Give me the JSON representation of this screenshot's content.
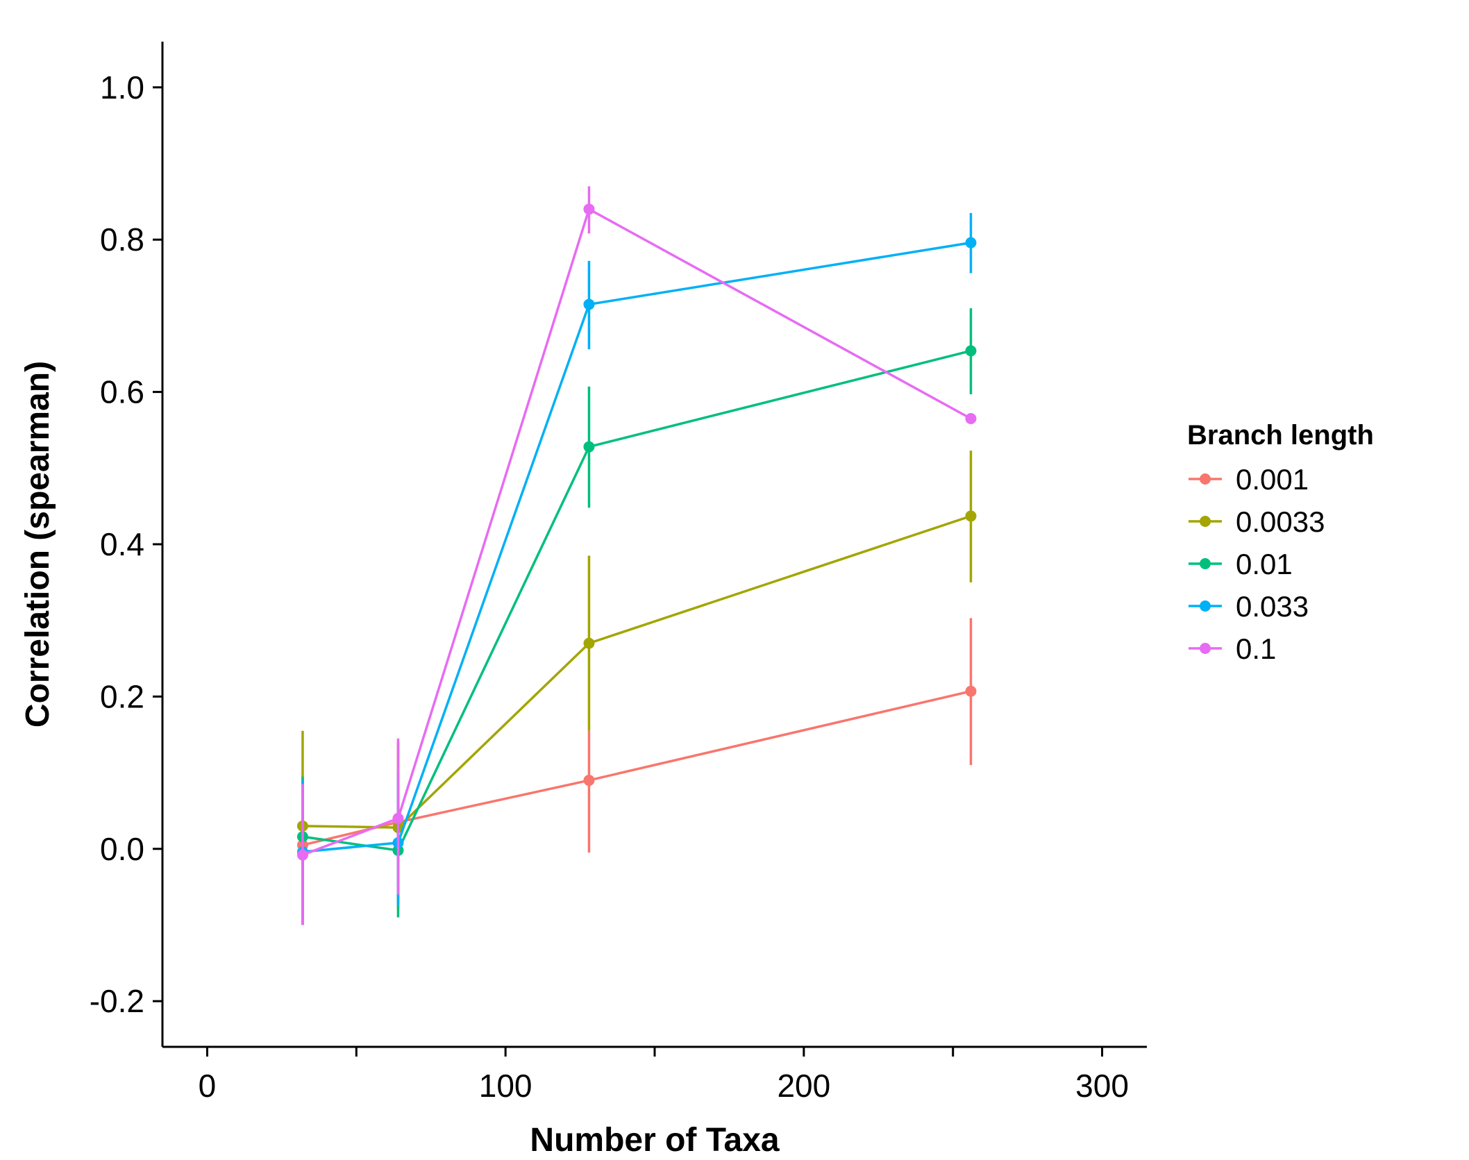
{
  "chart_data": {
    "type": "line",
    "title": "",
    "xlabel": "Number of Taxa",
    "ylabel": "Correlation (spearman)",
    "xlim": [
      -15,
      315
    ],
    "ylim": [
      -0.26,
      1.06
    ],
    "x_ticks": [
      0,
      100,
      200,
      300
    ],
    "x_tick_labels": [
      "0",
      "100",
      "200",
      "300"
    ],
    "x_minor_ticks": [
      50,
      150,
      250
    ],
    "y_ticks": [
      -0.2,
      0.0,
      0.2,
      0.4,
      0.6,
      0.8,
      1.0
    ],
    "y_tick_labels": [
      "-0.2",
      "0.0",
      "0.2",
      "0.4",
      "0.6",
      "0.8",
      "1.0"
    ],
    "grid": false,
    "legend": {
      "title": "Branch length",
      "position": "right"
    },
    "x": [
      32,
      64,
      128,
      256
    ],
    "series": [
      {
        "name": "0.001",
        "color": "#F8766D",
        "values": [
          0.005,
          0.035,
          0.09,
          0.207
        ],
        "err_low": [
          -0.1,
          -0.06,
          -0.005,
          0.11
        ],
        "err_high": [
          0.09,
          0.14,
          0.155,
          0.303
        ]
      },
      {
        "name": "0.0033",
        "color": "#A3A500",
        "values": [
          0.03,
          0.028,
          0.27,
          0.437
        ],
        "err_low": [
          -0.09,
          -0.08,
          0.155,
          0.35
        ],
        "err_high": [
          0.155,
          0.14,
          0.385,
          0.523
        ]
      },
      {
        "name": "0.01",
        "color": "#00BF7D",
        "values": [
          0.016,
          -0.002,
          0.528,
          0.654
        ],
        "err_low": [
          -0.1,
          -0.09,
          0.448,
          0.597
        ],
        "err_high": [
          0.095,
          0.09,
          0.607,
          0.71
        ]
      },
      {
        "name": "0.033",
        "color": "#00B0F6",
        "values": [
          -0.004,
          0.008,
          0.715,
          0.796
        ],
        "err_low": [
          -0.1,
          -0.075,
          0.656,
          0.756
        ],
        "err_high": [
          0.09,
          0.1,
          0.772,
          0.835
        ]
      },
      {
        "name": "0.1",
        "color": "#E76BF3",
        "values": [
          -0.008,
          0.04,
          0.84,
          0.565
        ],
        "err_low": [
          -0.1,
          -0.06,
          0.808,
          0.565
        ],
        "err_high": [
          0.085,
          0.145,
          0.87,
          0.565
        ]
      }
    ]
  }
}
